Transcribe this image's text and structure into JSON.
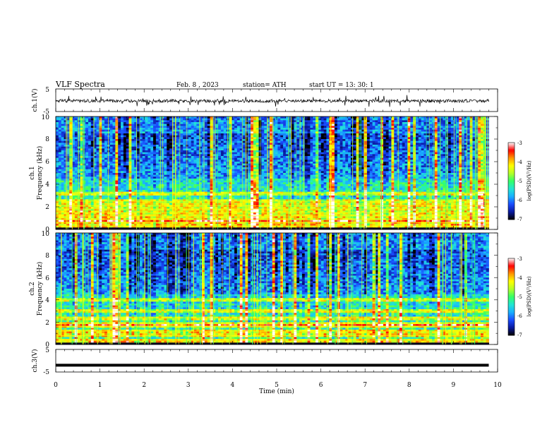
{
  "header": {
    "title": "VLF  Spectra",
    "date": "Feb. 8  , 2023",
    "station": "station= ATH",
    "start": "start  UT  =    13: 30: 1"
  },
  "chart_data": [
    {
      "type": "line",
      "name": "ch1-waveform",
      "ylabel": "ch.1(V)",
      "ylim": [
        -5,
        5
      ],
      "yticks": [
        "5",
        "-5"
      ],
      "xlim": [
        0,
        10
      ],
      "baseline": -0.3,
      "noise_amplitude": 0.7,
      "spike_amplitude": 2.5,
      "color": "#000000"
    },
    {
      "type": "heatmap",
      "name": "ch1-spectrogram",
      "ylabel_line1": "ch.1",
      "ylabel_line2": "Frequency  (kHz)",
      "xlim": [
        0,
        9.8
      ],
      "ylim": [
        0,
        10
      ],
      "yticks": [
        "0",
        "2",
        "4",
        "6",
        "8",
        "10"
      ],
      "colorbar": {
        "label": "log(PSD)(V²/Hz)",
        "range": [
          -7,
          -3
        ],
        "ticks": [
          "-3",
          "-4",
          "-5",
          "-6",
          "-7"
        ]
      },
      "bands_khz": [
        0.3,
        0.6,
        0.9,
        1.2,
        1.5,
        1.8,
        2.1,
        2.5,
        3.2
      ]
    },
    {
      "type": "heatmap",
      "name": "ch2-spectrogram",
      "ylabel_line1": "ch.2",
      "ylabel_line2": "Frequency  (kHz)",
      "xlim": [
        0,
        9.8
      ],
      "ylim": [
        0,
        10
      ],
      "yticks": [
        "0",
        "2",
        "4",
        "6",
        "8",
        "10"
      ],
      "colorbar": {
        "label": "log(PSD)(V²/Hz)",
        "range": [
          -7,
          -3
        ],
        "ticks": [
          "-3",
          "-4",
          "-5",
          "-6",
          "-7"
        ]
      },
      "bands_khz": [
        0.4,
        0.8,
        1.2,
        1.6,
        1.9,
        2.4,
        3.0,
        4.0
      ]
    },
    {
      "type": "line",
      "name": "ch3-waveform",
      "ylabel": "ch.3(V)",
      "ylim": [
        -5,
        5
      ],
      "yticks": [
        "5",
        "-5"
      ],
      "xlim": [
        0,
        9.8
      ],
      "value": -2,
      "color": "#000000"
    }
  ],
  "x_axis": {
    "label": "Time  (min)",
    "range": [
      0,
      10
    ],
    "ticks": [
      "0",
      "1",
      "2",
      "3",
      "4",
      "5",
      "6",
      "7",
      "8",
      "9",
      "10"
    ]
  },
  "colormap": [
    "#000000",
    "#0a1aa0",
    "#1a4cff",
    "#19b0ff",
    "#22e6d2",
    "#33ff66",
    "#b4ff28",
    "#ffff00",
    "#ff9600",
    "#ff0000",
    "#ffffff"
  ]
}
